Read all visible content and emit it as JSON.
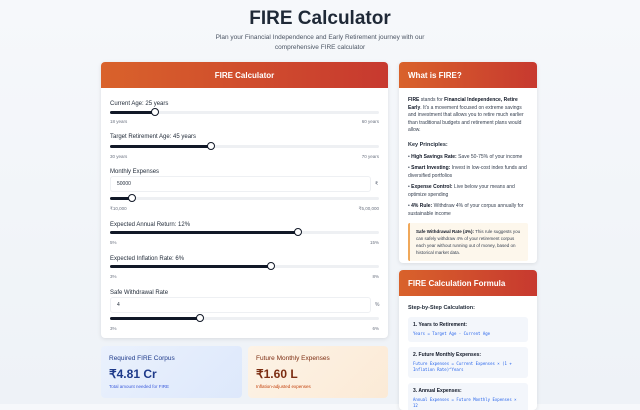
{
  "header": {
    "title": "FIRE Calculator",
    "subtitle": "Plan your Financial Independence and Early Retirement journey with our comprehensive FIRE calculator"
  },
  "calculator": {
    "title": "FIRE Calculator",
    "current_age": {
      "label": "Current Age: 25 years",
      "value": 25,
      "min": 18,
      "max": 60,
      "min_label": "18 years",
      "max_label": "60 years"
    },
    "retirement_age": {
      "label": "Target Retirement Age: 45 years",
      "value": 45,
      "min": 30,
      "max": 70,
      "min_label": "30 years",
      "max_label": "70 years"
    },
    "monthly_expenses": {
      "label": "Monthly Expenses",
      "input_value": "50000",
      "unit": "₹",
      "value": 50000,
      "min": 10000,
      "max": 500000,
      "min_label": "₹10,000",
      "max_label": "₹5,00,000"
    },
    "annual_return": {
      "label": "Expected Annual Return: 12%",
      "value": 12,
      "min": 5,
      "max": 15,
      "min_label": "5%",
      "max_label": "15%"
    },
    "inflation": {
      "label": "Expected Inflation Rate: 6%",
      "value": 6,
      "min": 3,
      "max": 8,
      "min_label": "3%",
      "max_label": "8%"
    },
    "withdrawal": {
      "label": "Safe Withdrawal Rate",
      "input_value": "4",
      "unit": "%",
      "value": 4,
      "min": 3,
      "max": 6,
      "min_label": "3%",
      "max_label": "6%"
    }
  },
  "results": [
    {
      "title": "Required FIRE Corpus",
      "value": "₹4.81 Cr",
      "subtitle": "Total amount needed for FIRE"
    },
    {
      "title": "Future Monthly Expenses",
      "value": "₹1.60 L",
      "subtitle": "Inflation-adjusted expenses"
    }
  ],
  "about": {
    "title": "What is FIRE?",
    "intro_b1": "FIRE",
    "intro_t1": " stands for ",
    "intro_b2": "Financial Independence, Retire Early",
    "intro_t2": ". It's a movement focused on extreme savings and investment that allows you to retire much earlier than traditional budgets and retirement plans would allow.",
    "principles_title": "Key Principles:",
    "principles": [
      {
        "name": "High Savings Rate:",
        "text": " Save 50-75% of your income"
      },
      {
        "name": "Smart Investing:",
        "text": " Invest in low-cost index funds and diversified portfolios"
      },
      {
        "name": "Expense Control:",
        "text": " Live below your means and optimize spending"
      },
      {
        "name": "4% Rule:",
        "text": " Withdraw 4% of your corpus annually for sustainable income"
      }
    ],
    "note_b": "Safe Withdrawal Rate (4%):",
    "note_t": " This rule suggests you can safely withdraw 4% of your retirement corpus each year without running out of money, based on historical market data."
  },
  "formula": {
    "title": "FIRE Calculation Formula",
    "subtitle": "Step-by-Step Calculation:",
    "steps": [
      {
        "title": "1. Years to Retirement:",
        "code": "Years = Target Age - Current Age"
      },
      {
        "title": "2. Future Monthly Expenses:",
        "code": "Future Expenses = Current Expenses × (1 + Inflation Rate)^Years"
      },
      {
        "title": "3. Annual Expenses:",
        "code": "Annual Expenses = Future Monthly Expenses × 12"
      }
    ]
  },
  "colors": {
    "accent_start": "#d9622b",
    "accent_end": "#c7392f",
    "slider": "#111827"
  }
}
